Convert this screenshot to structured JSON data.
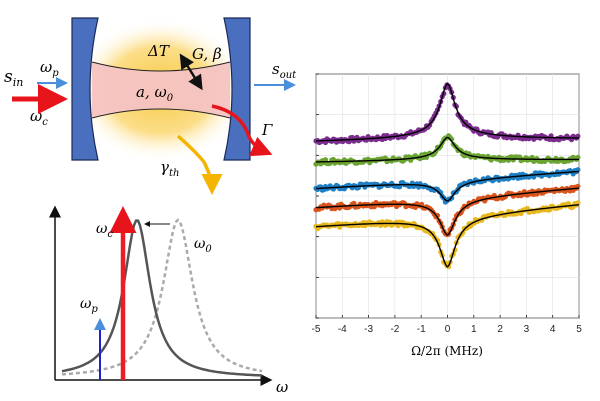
{
  "cavity": {
    "in_label": "s",
    "in_sub": "in",
    "out_label": "s",
    "out_sub": "out",
    "wp_label": "ω",
    "wp_sub": "p",
    "wc_label": "ω",
    "wc_sub": "c",
    "delta_t": "ΔT",
    "g_beta": "G, β",
    "mode_label": "a, ω",
    "mode_sub": "0",
    "loss_label": "Γ",
    "gamma_label": "γ",
    "gamma_sub": "th",
    "colors": {
      "red": "#e8141b",
      "blue": "#4a8fd9",
      "mirror": "#4a6fbf",
      "glow": "#f7c63a",
      "field": "#f6c6c6",
      "orange_arrow": "#f5b400"
    }
  },
  "spectrum": {
    "wc_label": "ω",
    "wc_sub": "c",
    "w0_label": "ω",
    "w0_sub": "0",
    "wp_label": "ω",
    "wp_sub": "p",
    "x_label": "ω",
    "colors": {
      "pump": "#ee1c24",
      "probe": "#1f1fd1",
      "shifted": "#555555",
      "bare": "#aaaaaa"
    }
  },
  "chart_data": {
    "type": "line",
    "title": "",
    "xlabel": "Ω/2π (MHz)",
    "ylabel": "",
    "xlim": [
      -5,
      5
    ],
    "ylim": [
      0,
      10
    ],
    "grid": true,
    "x_ticks": [
      "-5",
      "-4",
      "-3",
      "-2",
      "-1",
      "0",
      "1",
      "2",
      "3",
      "4",
      "5"
    ],
    "series": [
      {
        "color": "#7b2d8e",
        "baseline": 7.2,
        "peak": 9.6,
        "slope": 0.04,
        "sign": 1
      },
      {
        "color": "#6aa532",
        "baseline": 6.4,
        "peak": 7.4,
        "slope": 0.035,
        "sign": 1
      },
      {
        "color": "#1f7fc4",
        "baseline": 5.7,
        "peak": 4.8,
        "slope": 0.07,
        "sign": -1
      },
      {
        "color": "#d9541c",
        "baseline": 5.0,
        "peak": 3.4,
        "slope": 0.08,
        "sign": -1
      },
      {
        "color": "#e8b81e",
        "baseline": 4.3,
        "peak": 2.1,
        "slope": 0.09,
        "sign": -1
      }
    ],
    "fit_color": "#000000"
  }
}
